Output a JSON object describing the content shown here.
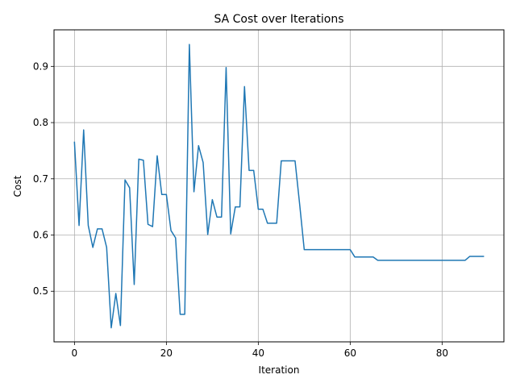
{
  "chart_data": {
    "type": "line",
    "title": "SA Cost over Iterations",
    "xlabel": "Iteration",
    "ylabel": "Cost",
    "xlim": [
      -4.45,
      93.45
    ],
    "ylim": [
      0.41,
      0.965
    ],
    "grid": true,
    "line_color": "#1f77b4",
    "xticks": [
      0,
      20,
      40,
      60,
      80
    ],
    "yticks": [
      0.5,
      0.6,
      0.7,
      0.8,
      0.9
    ],
    "xtick_labels": [
      "0",
      "20",
      "40",
      "60",
      "80"
    ],
    "ytick_labels": [
      "0.5",
      "0.6",
      "0.7",
      "0.8",
      "0.9"
    ],
    "series": [
      {
        "x": [
          0,
          1,
          2,
          3,
          4,
          5,
          6,
          7,
          8,
          9,
          10,
          11,
          12,
          13,
          14,
          15,
          16,
          17,
          18,
          19,
          20,
          21,
          22,
          23,
          24,
          25,
          26,
          27,
          28,
          29,
          30,
          31,
          32,
          33,
          34,
          35,
          36,
          37,
          38,
          39,
          40,
          41,
          42,
          43,
          44,
          45,
          46,
          47,
          48,
          49,
          50,
          51,
          52,
          53,
          54,
          55,
          56,
          57,
          58,
          59,
          60,
          61,
          62,
          63,
          64,
          65,
          66,
          67,
          68,
          69,
          70,
          71,
          72,
          73,
          74,
          75,
          76,
          77,
          78,
          79,
          80,
          81,
          82,
          83,
          84,
          85,
          86,
          87,
          88,
          89
        ],
        "values": [
          0.765,
          0.617,
          0.787,
          0.617,
          0.578,
          0.611,
          0.611,
          0.578,
          0.435,
          0.496,
          0.439,
          0.698,
          0.684,
          0.512,
          0.735,
          0.733,
          0.619,
          0.615,
          0.741,
          0.672,
          0.672,
          0.608,
          0.595,
          0.459,
          0.459,
          0.939,
          0.677,
          0.759,
          0.729,
          0.601,
          0.663,
          0.632,
          0.632,
          0.898,
          0.602,
          0.65,
          0.65,
          0.864,
          0.715,
          0.715,
          0.646,
          0.646,
          0.621,
          0.621,
          0.621,
          0.732,
          0.732,
          0.732,
          0.732,
          0.655,
          0.574,
          0.574,
          0.574,
          0.574,
          0.574,
          0.574,
          0.574,
          0.574,
          0.574,
          0.574,
          0.574,
          0.561,
          0.561,
          0.561,
          0.561,
          0.561,
          0.555,
          0.555,
          0.555,
          0.555,
          0.555,
          0.555,
          0.555,
          0.555,
          0.555,
          0.555,
          0.555,
          0.555,
          0.555,
          0.555,
          0.555,
          0.555,
          0.555,
          0.555,
          0.555,
          0.555,
          0.562,
          0.562,
          0.562,
          0.562
        ]
      }
    ]
  }
}
